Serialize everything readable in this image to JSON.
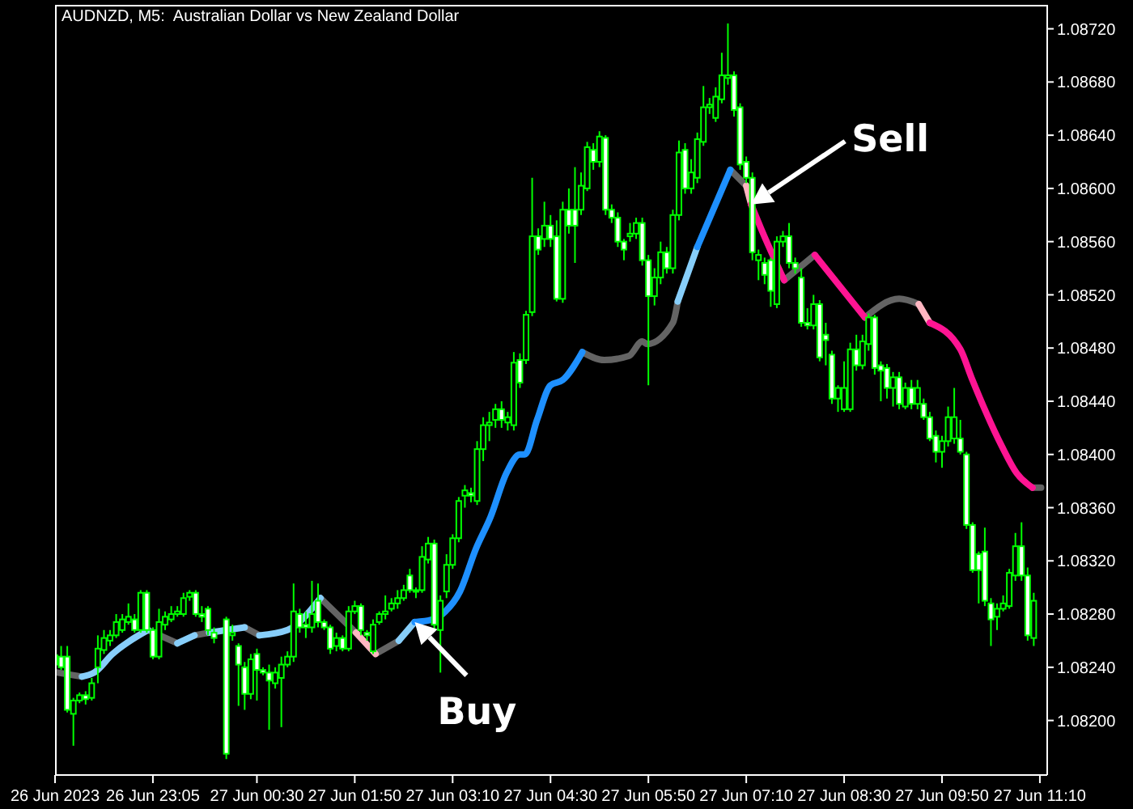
{
  "chart_data": {
    "type": "candlestick",
    "title": "AUDNZD, M5:  Australian Dollar vs New Zealand Dollar",
    "series": [
      {
        "color": "#00ff00",
        "x": [
          "2023-06-26T21:45",
          "2023-06-26T21:50",
          "2023-06-26T21:55",
          "2023-06-26T22:00",
          "2023-06-26T22:05",
          "2023-06-26T22:10",
          "2023-06-26T22:15",
          "2023-06-26T22:20",
          "2023-06-26T22:25",
          "2023-06-26T22:30",
          "2023-06-26T22:35",
          "2023-06-26T22:40",
          "2023-06-26T22:45",
          "2023-06-26T22:50",
          "2023-06-26T22:55",
          "2023-06-26T23:00",
          "2023-06-26T23:05",
          "2023-06-26T23:10",
          "2023-06-26T23:15",
          "2023-06-26T23:20",
          "2023-06-26T23:25",
          "2023-06-26T23:30",
          "2023-06-26T23:35",
          "2023-06-26T23:40",
          "2023-06-26T23:45",
          "2023-06-26T23:50",
          "2023-06-26T23:55",
          "2023-06-27T00:05",
          "2023-06-27T00:10",
          "2023-06-27T00:15",
          "2023-06-27T00:20",
          "2023-06-27T00:25",
          "2023-06-27T00:30",
          "2023-06-27T00:35",
          "2023-06-27T00:40",
          "2023-06-27T00:45",
          "2023-06-27T00:50",
          "2023-06-27T00:55",
          "2023-06-27T01:00",
          "2023-06-27T01:05",
          "2023-06-27T01:10",
          "2023-06-27T01:15",
          "2023-06-27T01:20",
          "2023-06-27T01:25",
          "2023-06-27T01:30",
          "2023-06-27T01:35",
          "2023-06-27T01:40",
          "2023-06-27T01:45",
          "2023-06-27T01:50",
          "2023-06-27T01:55",
          "2023-06-27T02:00",
          "2023-06-27T02:05",
          "2023-06-27T02:10",
          "2023-06-27T02:15",
          "2023-06-27T02:20",
          "2023-06-27T02:25",
          "2023-06-27T02:30",
          "2023-06-27T02:35",
          "2023-06-27T02:40",
          "2023-06-27T02:45",
          "2023-06-27T02:50",
          "2023-06-27T02:55",
          "2023-06-27T03:00",
          "2023-06-27T03:05",
          "2023-06-27T03:10",
          "2023-06-27T03:15",
          "2023-06-27T03:20",
          "2023-06-27T03:25",
          "2023-06-27T03:30",
          "2023-06-27T03:35",
          "2023-06-27T03:40",
          "2023-06-27T03:45",
          "2023-06-27T03:50",
          "2023-06-27T03:55",
          "2023-06-27T04:00",
          "2023-06-27T04:05",
          "2023-06-27T04:10",
          "2023-06-27T04:15",
          "2023-06-27T04:20",
          "2023-06-27T04:25",
          "2023-06-27T04:30",
          "2023-06-27T04:35",
          "2023-06-27T04:40",
          "2023-06-27T04:45",
          "2023-06-27T04:50",
          "2023-06-27T04:55",
          "2023-06-27T05:00",
          "2023-06-27T05:05",
          "2023-06-27T05:10",
          "2023-06-27T05:15",
          "2023-06-27T05:20",
          "2023-06-27T05:25",
          "2023-06-27T05:30",
          "2023-06-27T05:35",
          "2023-06-27T05:40",
          "2023-06-27T05:45",
          "2023-06-27T05:50",
          "2023-06-27T05:55",
          "2023-06-27T06:00",
          "2023-06-27T06:05",
          "2023-06-27T06:10",
          "2023-06-27T06:15",
          "2023-06-27T06:20",
          "2023-06-27T06:25",
          "2023-06-27T06:30",
          "2023-06-27T06:35",
          "2023-06-27T06:40",
          "2023-06-27T06:45",
          "2023-06-27T06:50",
          "2023-06-27T06:55",
          "2023-06-27T07:00",
          "2023-06-27T07:05",
          "2023-06-27T07:10",
          "2023-06-27T07:15",
          "2023-06-27T07:20",
          "2023-06-27T07:25",
          "2023-06-27T07:30",
          "2023-06-27T07:35",
          "2023-06-27T07:40",
          "2023-06-27T07:45",
          "2023-06-27T07:50",
          "2023-06-27T07:55",
          "2023-06-27T08:00",
          "2023-06-27T08:05",
          "2023-06-27T08:10",
          "2023-06-27T08:15",
          "2023-06-27T08:20",
          "2023-06-27T08:25",
          "2023-06-27T08:30",
          "2023-06-27T08:35",
          "2023-06-27T08:40",
          "2023-06-27T08:45",
          "2023-06-27T08:50",
          "2023-06-27T08:55",
          "2023-06-27T09:00",
          "2023-06-27T09:05",
          "2023-06-27T09:10",
          "2023-06-27T09:15",
          "2023-06-27T09:20",
          "2023-06-27T09:25",
          "2023-06-27T09:30",
          "2023-06-27T09:35",
          "2023-06-27T09:40",
          "2023-06-27T09:45",
          "2023-06-27T09:50",
          "2023-06-27T09:55",
          "2023-06-27T10:00",
          "2023-06-27T10:05",
          "2023-06-27T10:10",
          "2023-06-27T10:15",
          "2023-06-27T10:20",
          "2023-06-27T10:25",
          "2023-06-27T10:30",
          "2023-06-27T10:35",
          "2023-06-27T10:40",
          "2023-06-27T10:45",
          "2023-06-27T10:50",
          "2023-06-27T10:55",
          "2023-06-27T11:00",
          "2023-06-27T11:05"
        ],
        "ohlc": [
          [
            1.08242,
            1.08252,
            1.0824,
            1.08249
          ],
          [
            1.08248,
            1.08256,
            1.08238,
            1.0824
          ],
          [
            1.08248,
            1.08256,
            1.08206,
            1.08208
          ],
          [
            1.08205,
            1.08217,
            1.08181,
            1.08215
          ],
          [
            1.08215,
            1.08221,
            1.08213,
            1.08219
          ],
          [
            1.08219,
            1.08222,
            1.08212,
            1.08216
          ],
          [
            1.08217,
            1.08232,
            1.08215,
            1.08228
          ],
          [
            1.0824,
            1.08264,
            1.08228,
            1.08254
          ],
          [
            1.08253,
            1.08268,
            1.0825,
            1.08262
          ],
          [
            1.0826,
            1.08268,
            1.08256,
            1.08264
          ],
          [
            1.08264,
            1.0828,
            1.08262,
            1.08274
          ],
          [
            1.08268,
            1.0828,
            1.08266,
            1.08276
          ],
          [
            1.08274,
            1.08288,
            1.08272,
            1.08278
          ],
          [
            1.08276,
            1.0828,
            1.08266,
            1.08268
          ],
          [
            1.08268,
            1.08298,
            1.08266,
            1.08296
          ],
          [
            1.08296,
            1.08298,
            1.08266,
            1.08268
          ],
          [
            1.08268,
            1.0827,
            1.08246,
            1.08248
          ],
          [
            1.08248,
            1.08284,
            1.08246,
            1.08274
          ],
          [
            1.08272,
            1.08282,
            1.08268,
            1.08278
          ],
          [
            1.08276,
            1.08286,
            1.08274,
            1.0828
          ],
          [
            1.0828,
            1.08286,
            1.08278,
            1.08282
          ],
          [
            1.0828,
            1.08296,
            1.08278,
            1.08292
          ],
          [
            1.08293,
            1.08298,
            1.0829,
            1.08296
          ],
          [
            1.08296,
            1.08298,
            1.08278,
            1.0828
          ],
          [
            1.0828,
            1.08286,
            1.08274,
            1.08278
          ],
          [
            1.08284,
            1.08286,
            1.08264,
            1.08268
          ],
          [
            1.08266,
            1.0827,
            1.08258,
            1.08262
          ],
          [
            1.08276,
            1.08278,
            1.08171,
            1.08175
          ],
          [
            1.08264,
            1.08272,
            1.0826,
            1.08266
          ],
          [
            1.08256,
            1.08258,
            1.08211,
            1.08242
          ],
          [
            1.0824,
            1.08244,
            1.08208,
            1.0822
          ],
          [
            1.0822,
            1.0825,
            1.08216,
            1.08246
          ],
          [
            1.0825,
            1.08254,
            1.08215,
            1.08238
          ],
          [
            1.08238,
            1.0824,
            1.08234,
            1.08236
          ],
          [
            1.08236,
            1.08242,
            1.08193,
            1.0823
          ],
          [
            1.08228,
            1.0824,
            1.08224,
            1.08236
          ],
          [
            1.08232,
            1.08248,
            1.08195,
            1.08242
          ],
          [
            1.08242,
            1.08252,
            1.0824,
            1.08248
          ],
          [
            1.08248,
            1.08303,
            1.08244,
            1.08282
          ],
          [
            1.0828,
            1.08284,
            1.08266,
            1.0827
          ],
          [
            1.08272,
            1.08282,
            1.08262,
            1.0827
          ],
          [
            1.0827,
            1.08305,
            1.08266,
            1.0828
          ],
          [
            1.0829,
            1.08303,
            1.0827,
            1.08274
          ],
          [
            1.08274,
            1.08276,
            1.08268,
            1.0827
          ],
          [
            1.0827,
            1.08272,
            1.0825,
            1.08254
          ],
          [
            1.08256,
            1.08266,
            1.08252,
            1.08262
          ],
          [
            1.08262,
            1.08264,
            1.08252,
            1.08254
          ],
          [
            1.08254,
            1.08286,
            1.08252,
            1.08282
          ],
          [
            1.08282,
            1.0829,
            1.0828,
            1.08286
          ],
          [
            1.08286,
            1.08288,
            1.08264,
            1.08268
          ],
          [
            1.08266,
            1.08268,
            1.0826,
            1.08264
          ],
          [
            1.08252,
            1.08276,
            1.0825,
            1.08272
          ],
          [
            1.08274,
            1.08282,
            1.08272,
            1.0828
          ],
          [
            1.0828,
            1.08294,
            1.08276,
            1.08282
          ],
          [
            1.08284,
            1.08292,
            1.08282,
            1.08288
          ],
          [
            1.08288,
            1.08298,
            1.08284,
            1.08292
          ],
          [
            1.08292,
            1.08302,
            1.0829,
            1.08298
          ],
          [
            1.08309,
            1.08314,
            1.08296,
            1.08298
          ],
          [
            1.08297,
            1.083,
            1.08292,
            1.08298
          ],
          [
            1.08298,
            1.08331,
            1.08296,
            1.08323
          ],
          [
            1.08321,
            1.08338,
            1.08318,
            1.08333
          ],
          [
            1.08333,
            1.08336,
            1.08268,
            1.08272
          ],
          [
            1.08268,
            1.08294,
            1.08236,
            1.0829
          ],
          [
            1.08297,
            1.08325,
            1.08292,
            1.08317
          ],
          [
            1.08317,
            1.0834,
            1.08314,
            1.08337
          ],
          [
            1.08337,
            1.08368,
            1.08334,
            1.08365
          ],
          [
            1.08369,
            1.08377,
            1.0836,
            1.08373
          ],
          [
            1.08371,
            1.08375,
            1.08364,
            1.08369
          ],
          [
            1.08365,
            1.0841,
            1.08362,
            1.08404
          ],
          [
            1.08404,
            1.08428,
            1.08395,
            1.08422
          ],
          [
            1.08422,
            1.08432,
            1.0841,
            1.08424
          ],
          [
            1.08426,
            1.08438,
            1.0842,
            1.08434
          ],
          [
            1.08434,
            1.0844,
            1.0842,
            1.08426
          ],
          [
            1.08424,
            1.08432,
            1.08418,
            1.08428
          ],
          [
            1.08422,
            1.08477,
            1.08418,
            1.08469
          ],
          [
            1.08471,
            1.08476,
            1.0845,
            1.08454
          ],
          [
            1.08471,
            1.08508,
            1.08468,
            1.08505
          ],
          [
            1.08507,
            1.08608,
            1.08504,
            1.08564
          ],
          [
            1.08564,
            1.0857,
            1.0855,
            1.08554
          ],
          [
            1.08562,
            1.0859,
            1.08556,
            1.08572
          ],
          [
            1.08572,
            1.0858,
            1.08556,
            1.08562
          ],
          [
            1.08564,
            1.08576,
            1.08515,
            1.08517
          ],
          [
            1.08517,
            1.0859,
            1.08514,
            1.08584
          ],
          [
            1.08584,
            1.086,
            1.08566,
            1.08572
          ],
          [
            1.08584,
            1.08616,
            1.08544,
            1.08572
          ],
          [
            1.08584,
            1.08612,
            1.0858,
            1.08602
          ],
          [
            1.086,
            1.08635,
            1.08598,
            1.08631
          ],
          [
            1.08629,
            1.08634,
            1.08614,
            1.0862
          ],
          [
            1.0862,
            1.08643,
            1.08616,
            1.08639
          ],
          [
            1.08638,
            1.0864,
            1.0858,
            1.08584
          ],
          [
            1.08584,
            1.08588,
            1.08574,
            1.08578
          ],
          [
            1.08578,
            1.08582,
            1.08556,
            1.0856
          ],
          [
            1.0856,
            1.08562,
            1.08546,
            1.08554
          ],
          [
            1.08564,
            1.08574,
            1.0856,
            1.08566
          ],
          [
            1.08566,
            1.08578,
            1.08562,
            1.08574
          ],
          [
            1.08574,
            1.08578,
            1.08542,
            1.08546
          ],
          [
            1.08546,
            1.0855,
            1.08452,
            1.08519
          ],
          [
            1.08519,
            1.0854,
            1.08512,
            1.08533
          ],
          [
            1.08533,
            1.0856,
            1.08528,
            1.08552
          ],
          [
            1.08552,
            1.08556,
            1.08536,
            1.0854
          ],
          [
            1.0854,
            1.08584,
            1.08536,
            1.0858
          ],
          [
            1.0858,
            1.08636,
            1.08576,
            1.08627
          ],
          [
            1.08629,
            1.08634,
            1.08596,
            1.086
          ],
          [
            1.086,
            1.08622,
            1.08596,
            1.08612
          ],
          [
            1.08608,
            1.08642,
            1.08604,
            1.08637
          ],
          [
            1.08635,
            1.08677,
            1.08632,
            1.08661
          ],
          [
            1.08661,
            1.08668,
            1.08656,
            1.08663
          ],
          [
            1.08653,
            1.08676,
            1.0865,
            1.08669
          ],
          [
            1.08667,
            1.08702,
            1.08664,
            1.08685
          ],
          [
            1.08683,
            1.08724,
            1.08678,
            1.08685
          ],
          [
            1.08685,
            1.08688,
            1.08654,
            1.08659
          ],
          [
            1.08661,
            1.08664,
            1.08614,
            1.08618
          ],
          [
            1.0862,
            1.08624,
            1.08604,
            1.08608
          ],
          [
            1.08608,
            1.08612,
            1.08546,
            1.08552
          ],
          [
            1.08546,
            1.08554,
            1.08531,
            1.0855
          ],
          [
            1.08544,
            1.08548,
            1.08528,
            1.08535
          ],
          [
            1.08546,
            1.08548,
            1.08511,
            1.08523
          ],
          [
            1.08513,
            1.08564,
            1.0851,
            1.0856
          ],
          [
            1.0856,
            1.08568,
            1.08556,
            1.08564
          ],
          [
            1.08564,
            1.08574,
            1.0854,
            1.08544
          ],
          [
            1.08544,
            1.08548,
            1.08536,
            1.0854
          ],
          [
            1.08533,
            1.0854,
            1.08496,
            1.08499
          ],
          [
            1.08499,
            1.0851,
            1.08494,
            1.08497
          ],
          [
            1.08497,
            1.0852,
            1.08494,
            1.08513
          ],
          [
            1.08513,
            1.08516,
            1.0847,
            1.08473
          ],
          [
            1.0849,
            1.08499,
            1.08467,
            1.08486
          ],
          [
            1.08475,
            1.08478,
            1.08438,
            1.08442
          ],
          [
            1.08442,
            1.08452,
            1.08432,
            1.0845
          ],
          [
            1.08434,
            1.0847,
            1.08432,
            1.0845
          ],
          [
            1.08434,
            1.08484,
            1.08432,
            1.08479
          ],
          [
            1.08479,
            1.0849,
            1.08463,
            1.08467
          ],
          [
            1.08467,
            1.0849,
            1.08464,
            1.08485
          ],
          [
            1.08483,
            1.08506,
            1.08478,
            1.08503
          ],
          [
            1.08503,
            1.08505,
            1.0846,
            1.08465
          ],
          [
            1.08467,
            1.0847,
            1.0844,
            1.08463
          ],
          [
            1.08465,
            1.08468,
            1.08442,
            1.0845
          ],
          [
            1.0845,
            1.08462,
            1.08436,
            1.08458
          ],
          [
            1.08458,
            1.08462,
            1.08434,
            1.08438
          ],
          [
            1.08436,
            1.08454,
            1.08434,
            1.0845
          ],
          [
            1.0845,
            1.08456,
            1.08434,
            1.08438
          ],
          [
            1.08438,
            1.08456,
            1.08434,
            1.0845
          ],
          [
            1.08438,
            1.08442,
            1.08426,
            1.08428
          ],
          [
            1.08428,
            1.08432,
            1.0841,
            1.08412
          ],
          [
            1.08414,
            1.08418,
            1.08394,
            1.08402
          ],
          [
            1.08402,
            1.08414,
            1.0839,
            1.0841
          ],
          [
            1.0841,
            1.08436,
            1.08406,
            1.08428
          ],
          [
            1.08412,
            1.0845,
            1.08408,
            1.08428
          ],
          [
            1.08412,
            1.08426,
            1.084,
            1.08402
          ],
          [
            1.084,
            1.08402,
            1.08344,
            1.08347
          ],
          [
            1.08347,
            1.08349,
            1.08311,
            1.08313
          ],
          [
            1.08325,
            1.08327,
            1.08288,
            1.08313
          ],
          [
            1.08327,
            1.08345,
            1.08286,
            1.0829
          ],
          [
            1.08288,
            1.08292,
            1.08256,
            1.08276
          ],
          [
            1.08278,
            1.08288,
            1.08268,
            1.08284
          ],
          [
            1.08284,
            1.08294,
            1.08282,
            1.08288
          ],
          [
            1.08286,
            1.08314,
            1.08284,
            1.08311
          ],
          [
            1.08309,
            1.08341,
            1.08305,
            1.08331
          ],
          [
            1.08331,
            1.08349,
            1.08305,
            1.08309
          ],
          [
            1.08309,
            1.08315,
            1.0826,
            1.08264
          ],
          [
            1.08262,
            1.08296,
            1.08256,
            1.0829
          ]
        ]
      },
      {
        "type": "line",
        "color": "#646464",
        "x": [
          "2023-06-26T21:47",
          "2023-06-26T22:07",
          "2023-06-26T22:20",
          "2023-06-26T23:01",
          "2023-06-26T23:25",
          "2023-06-26T23:30",
          "2023-06-26T23:39",
          "2023-06-26T23:51",
          "2023-06-27T00:05",
          "2023-06-27T00:20",
          "2023-06-27T00:32",
          "2023-06-27T01:00",
          "2023-06-27T01:22",
          "2023-06-27T01:51",
          "2023-06-27T02:00",
          "2023-06-27T02:07",
          "2023-06-27T02:26",
          "2023-06-27T03:00",
          "2023-06-27T04:56",
          "2023-06-27T05:14",
          "2023-06-27T05:34",
          "2023-06-27T05:45",
          "2023-06-27T05:49",
          "2023-06-27T06:10",
          "2023-06-27T06:14",
          "2023-06-27T06:30",
          "2023-06-27T06:57",
          "2023-06-27T07:10",
          "2023-06-27T07:20",
          "2023-06-27T07:41",
          "2023-06-27T08:06",
          "2023-06-27T08:20",
          "2023-06-27T08:47",
          "2023-06-27T09:15",
          "2023-06-27T09:31",
          "2023-06-27T10:00",
          "2023-06-27T11:04",
          "2023-06-27T11:11"
        ],
        "values": [
          1.08236,
          1.08233,
          null,
          1.08268,
          1.08258,
          null,
          1.08264,
          1.08266,
          null,
          1.0827,
          1.08264,
          null,
          1.08292,
          1.08266,
          null,
          1.0825,
          1.0826,
          null,
          1.08477,
          1.08471,
          1.08474,
          1.08485,
          1.08483,
          1.08499,
          1.08515,
          null,
          1.08614,
          1.08602,
          null,
          1.08531,
          1.0855,
          null,
          1.08503,
          1.08517,
          1.08513,
          null,
          1.08375,
          1.08375
        ]
      },
      {
        "type": "line",
        "color": "#87cefa",
        "x": [
          "2023-06-26T22:07",
          "2023-06-26T22:17",
          "2023-06-26T22:32",
          "2023-06-26T23:01",
          "2023-06-26T23:10",
          "2023-06-26T23:25",
          "2023-06-26T23:39",
          "2023-06-26T23:45",
          "2023-06-26T23:51",
          "2023-06-27T00:20",
          "2023-06-27T00:25",
          "2023-06-27T00:32",
          "2023-06-27T00:55",
          "2023-06-27T01:22",
          "2023-06-27T02:00",
          "2023-06-27T02:26",
          "2023-06-27T02:39",
          "2023-06-27T04:00",
          "2023-06-27T06:14",
          "2023-06-27T06:30"
        ],
        "values": [
          1.08233,
          1.08236,
          1.0825,
          1.08268,
          null,
          1.08258,
          1.08264,
          null,
          1.08266,
          1.0827,
          null,
          1.08264,
          1.08268,
          1.08292,
          null,
          1.0826,
          1.08274,
          null,
          1.08515,
          1.08556
        ]
      },
      {
        "type": "line",
        "color": "#1e90ff",
        "x": [
          "2023-06-27T02:39",
          "2023-06-27T02:54",
          "2023-06-27T03:04",
          "2023-06-27T03:16",
          "2023-06-27T03:29",
          "2023-06-27T03:41",
          "2023-06-27T03:54",
          "2023-06-27T04:05",
          "2023-06-27T04:09",
          "2023-06-27T04:19",
          "2023-06-27T04:30",
          "2023-06-27T04:40",
          "2023-06-27T04:56",
          "2023-06-27T05:30",
          "2023-06-27T06:30",
          "2023-06-27T06:57"
        ],
        "values": [
          1.08274,
          1.08276,
          1.08282,
          1.08297,
          1.08329,
          1.08353,
          1.08386,
          1.084,
          1.084,
          1.08426,
          1.08452,
          1.08456,
          1.08477,
          null,
          1.08556,
          1.08614
        ]
      },
      {
        "type": "line",
        "color": "#ffb6c1",
        "x": [
          "2023-06-27T01:51",
          "2023-06-27T02:07",
          "2023-06-27T03:00",
          "2023-06-27T07:10",
          "2023-06-27T07:14",
          "2023-06-27T08:00",
          "2023-06-27T09:31",
          "2023-06-27T09:40"
        ],
        "values": [
          1.08266,
          1.0825,
          null,
          1.08602,
          1.08588,
          null,
          1.08513,
          1.08499
        ]
      },
      {
        "type": "line",
        "color": "#ff1493",
        "x": [
          "2023-06-27T07:14",
          "2023-06-27T07:22",
          "2023-06-27T07:41",
          "2023-06-27T07:50",
          "2023-06-27T08:06",
          "2023-06-27T08:47",
          "2023-06-27T09:00",
          "2023-06-27T09:40",
          "2023-06-27T10:05",
          "2023-06-27T10:14",
          "2023-06-27T10:39",
          "2023-06-27T10:51",
          "2023-06-27T11:04"
        ],
        "values": [
          1.08588,
          1.0857,
          1.08531,
          null,
          1.0855,
          1.08503,
          null,
          1.08499,
          1.08479,
          1.08458,
          1.08406,
          1.08386,
          1.08375
        ]
      }
    ],
    "xlim": [
      "2023-06-26T21:45",
      "2023-06-27T11:16"
    ],
    "xticks": [
      {
        "value": "2023-06-26T21:45",
        "label": "26 Jun 2023"
      },
      {
        "value": "2023-06-26T23:05",
        "label": "26 Jun 23:05"
      },
      {
        "value": "2023-06-27T00:30",
        "label": "27 Jun 00:30"
      },
      {
        "value": "2023-06-27T01:50",
        "label": "27 Jun 01:50"
      },
      {
        "value": "2023-06-27T03:10",
        "label": "27 Jun 03:10"
      },
      {
        "value": "2023-06-27T04:30",
        "label": "27 Jun 04:30"
      },
      {
        "value": "2023-06-27T05:50",
        "label": "27 Jun 05:50"
      },
      {
        "value": "2023-06-27T07:10",
        "label": "27 Jun 07:10"
      },
      {
        "value": "2023-06-27T08:30",
        "label": "27 Jun 08:30"
      },
      {
        "value": "2023-06-27T09:50",
        "label": "27 Jun 09:50"
      },
      {
        "value": "2023-06-27T11:10",
        "label": "27 Jun 11:10"
      }
    ],
    "ylim": [
      1.08159,
      1.08738
    ],
    "yticks": [
      {
        "value": 1.082,
        "label": "1.08200"
      },
      {
        "value": 1.0824,
        "label": "1.08240"
      },
      {
        "value": 1.0828,
        "label": "1.08280"
      },
      {
        "value": 1.0832,
        "label": "1.08320"
      },
      {
        "value": 1.0836,
        "label": "1.08360"
      },
      {
        "value": 1.084,
        "label": "1.08400"
      },
      {
        "value": 1.0844,
        "label": "1.08440"
      },
      {
        "value": 1.0848,
        "label": "1.08480"
      },
      {
        "value": 1.0852,
        "label": "1.08520"
      },
      {
        "value": 1.0856,
        "label": "1.08560"
      },
      {
        "value": 1.086,
        "label": "1.08600"
      },
      {
        "value": 1.0864,
        "label": "1.08640"
      },
      {
        "value": 1.0868,
        "label": "1.08680"
      },
      {
        "value": 1.0872,
        "label": "1.08720"
      }
    ],
    "annotations": [
      {
        "text": "Buy",
        "x": "2023-06-27T02:39",
        "y": 1.08274
      },
      {
        "text": "Sell",
        "x": "2023-06-27T07:14",
        "y": 1.08588
      }
    ]
  }
}
